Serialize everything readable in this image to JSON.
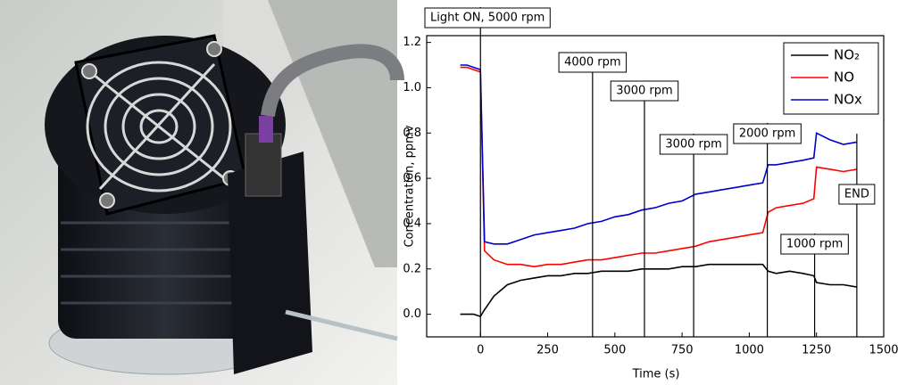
{
  "chart_data": {
    "type": "line",
    "x_label": "Time (s)",
    "y_label": "Concentration, ppmv",
    "x": [
      -75,
      -50,
      -25,
      0,
      15,
      50,
      100,
      150,
      200,
      250,
      300,
      350,
      400,
      450,
      500,
      550,
      600,
      650,
      700,
      750,
      800,
      850,
      900,
      950,
      1000,
      1050,
      1070,
      1100,
      1150,
      1200,
      1240,
      1250,
      1300,
      1350,
      1400
    ],
    "series": [
      {
        "name": "NO₂",
        "color": "#000000",
        "values": [
          0.0,
          0.0,
          0.0,
          -0.01,
          0.02,
          0.08,
          0.13,
          0.15,
          0.16,
          0.17,
          0.17,
          0.18,
          0.18,
          0.19,
          0.19,
          0.19,
          0.2,
          0.2,
          0.2,
          0.21,
          0.21,
          0.22,
          0.22,
          0.22,
          0.22,
          0.22,
          0.19,
          0.18,
          0.19,
          0.18,
          0.17,
          0.14,
          0.13,
          0.13,
          0.12
        ]
      },
      {
        "name": "NO",
        "color": "#ff0000",
        "values": [
          1.09,
          1.09,
          1.08,
          1.07,
          0.28,
          0.24,
          0.22,
          0.22,
          0.21,
          0.22,
          0.22,
          0.23,
          0.24,
          0.24,
          0.25,
          0.26,
          0.27,
          0.27,
          0.28,
          0.29,
          0.3,
          0.32,
          0.33,
          0.34,
          0.35,
          0.36,
          0.45,
          0.47,
          0.48,
          0.49,
          0.51,
          0.65,
          0.64,
          0.63,
          0.64
        ]
      },
      {
        "name": "NOx",
        "color": "#0000cc",
        "values": [
          1.1,
          1.1,
          1.09,
          1.08,
          0.32,
          0.31,
          0.31,
          0.33,
          0.35,
          0.36,
          0.37,
          0.38,
          0.4,
          0.41,
          0.43,
          0.44,
          0.46,
          0.47,
          0.49,
          0.5,
          0.53,
          0.54,
          0.55,
          0.56,
          0.57,
          0.58,
          0.66,
          0.66,
          0.67,
          0.68,
          0.69,
          0.8,
          0.77,
          0.75,
          0.76
        ]
      }
    ],
    "xlim": [
      -200,
      1500
    ],
    "xticks": [
      0,
      250,
      500,
      750,
      1000,
      1250,
      1500
    ],
    "ylim": [
      -0.1,
      1.23
    ],
    "yticks": [
      {
        "value": 0,
        "label": "0.0"
      },
      0.2,
      0.4,
      0.6,
      0.8,
      {
        "value": 1,
        "label": "1.0"
      },
      1.2
    ],
    "legend": "top-right",
    "annotations": [
      {
        "label": "Light ON, 5000 rpm",
        "x": 0
      },
      {
        "label": "4000 rpm",
        "x": 417
      },
      {
        "label": "3000 rpm",
        "x": 610
      },
      {
        "label": "3000 rpm",
        "x": 793
      },
      {
        "label": "2000 rpm",
        "x": 1067
      },
      {
        "label": "1000 rpm",
        "x": 1243
      },
      {
        "label": "END",
        "x": 1400
      }
    ]
  }
}
